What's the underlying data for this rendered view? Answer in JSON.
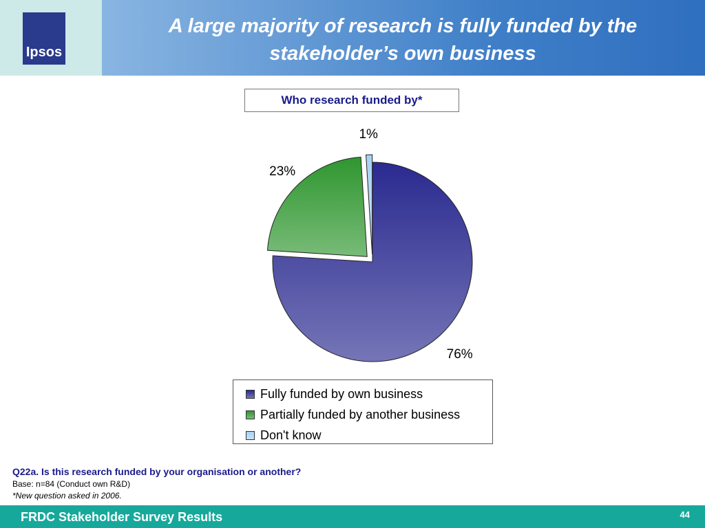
{
  "slide": {
    "logo": "Ipsos",
    "heading": "A large majority of research is fully funded by the stakeholder’s own business",
    "question": "Q22a. Is this research funded by your organisation or another?",
    "base": "Base: n=84 (Conduct own R&D)",
    "note": "*New question asked in 2006.",
    "footer": "FRDC Stakeholder Survey Results",
    "page_number": "44"
  },
  "chart_data": {
    "type": "pie",
    "title": "Who research funded by*",
    "categories": [
      "Fully funded by own business",
      "Partially funded by another business",
      "Don't know"
    ],
    "values": [
      76,
      23,
      1
    ],
    "value_labels": [
      "76%",
      "23%",
      "1%"
    ],
    "colors": [
      "#2a2a90",
      "#2f962f",
      "#a9d2f2"
    ],
    "exploded": [
      false,
      true,
      true
    ],
    "legend": "bottom"
  }
}
